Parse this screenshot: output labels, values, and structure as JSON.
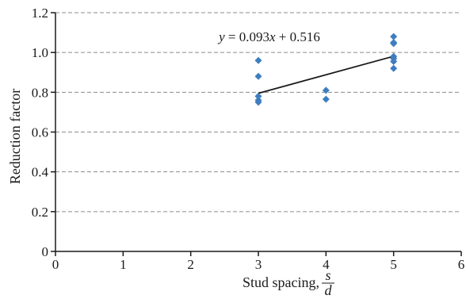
{
  "chart_data": {
    "type": "scatter",
    "xlabel_main": "Stud spacing, ",
    "xlabel_frac_num": "s",
    "xlabel_frac_den": "d",
    "ylabel": "Reduction factor",
    "xlim": [
      0,
      6
    ],
    "ylim": [
      0,
      1.2
    ],
    "xticks": [
      "0",
      "1",
      "2",
      "3",
      "4",
      "5",
      "6"
    ],
    "yticks": [
      "0",
      "0.2",
      "0.4",
      "0.6",
      "0.8",
      "1.0",
      "1.2"
    ],
    "grid": "horizontal-dashed",
    "marker_color": "#3d7ebf",
    "fit_color": "#1a1a1a",
    "grid_color": "#8c8c8c",
    "points": [
      {
        "x": 3,
        "y": 0.96
      },
      {
        "x": 3,
        "y": 0.88
      },
      {
        "x": 3,
        "y": 0.78
      },
      {
        "x": 3,
        "y": 0.76
      },
      {
        "x": 3,
        "y": 0.75
      },
      {
        "x": 4,
        "y": 0.81
      },
      {
        "x": 4,
        "y": 0.765
      },
      {
        "x": 5,
        "y": 1.08
      },
      {
        "x": 5,
        "y": 1.05
      },
      {
        "x": 5,
        "y": 1.045
      },
      {
        "x": 5,
        "y": 0.98
      },
      {
        "x": 5,
        "y": 0.97
      },
      {
        "x": 5,
        "y": 0.955
      },
      {
        "x": 5,
        "y": 0.92
      }
    ],
    "trendline": {
      "slope": 0.093,
      "intercept": 0.516,
      "x_range": [
        3,
        5
      ],
      "eq_y": "y",
      "eq_mid": " = 0.093",
      "eq_x": "x",
      "eq_end": " + 0.516"
    }
  }
}
